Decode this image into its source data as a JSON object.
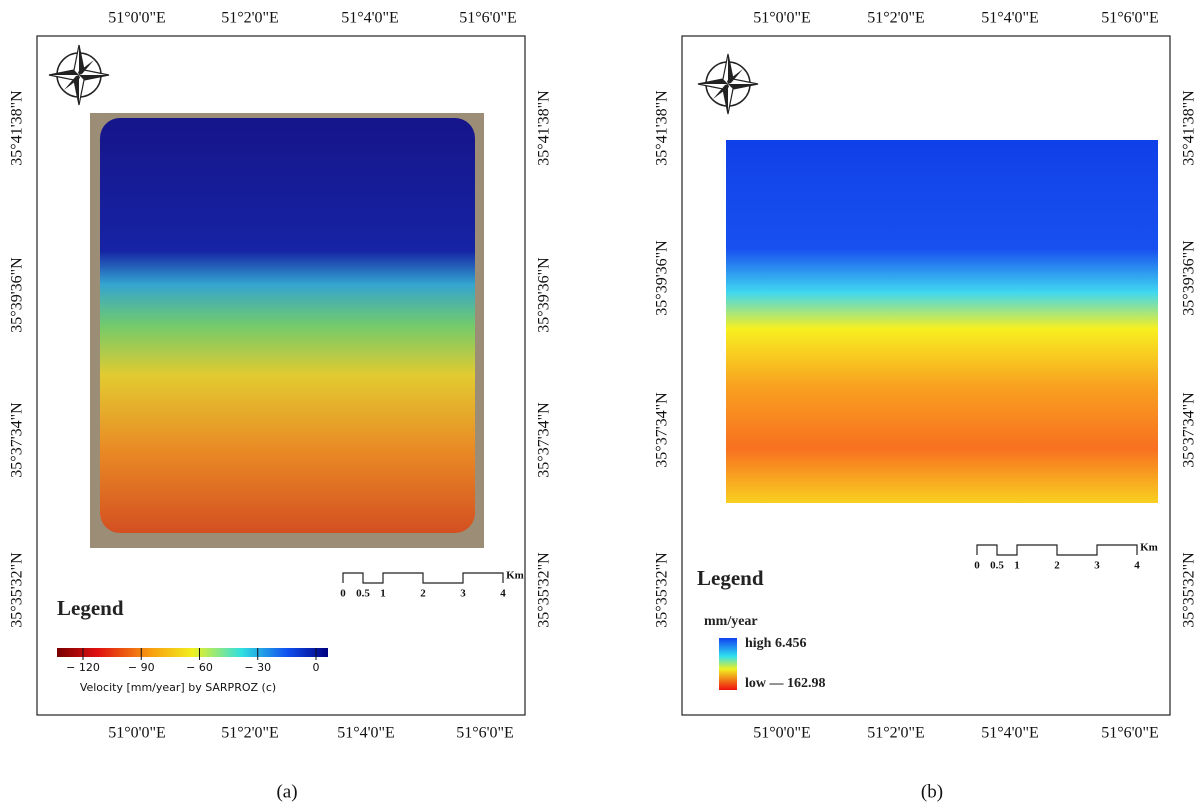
{
  "panel_a": {
    "top_lon": [
      "51°0'0\"E",
      "51°2'0\"E",
      "51°4'0\"E",
      "51°6'0\"E"
    ],
    "bottom_lon": [
      "51°0'0\"E",
      "51°2'0\"E",
      "51°4'0\"E",
      "51°6'0\"E"
    ],
    "left_lat": [
      "35°41'38\"N",
      "35°39'36\"N",
      "35°37'34\"N",
      "35°35'32\"N"
    ],
    "right_lat": [
      "35°41'38\"N",
      "35°39'36\"N",
      "35°37'34\"N",
      "35°35'32\"N"
    ],
    "scale_bar": {
      "ticks": [
        0,
        0.5,
        1,
        2,
        3,
        4
      ],
      "unit": "Km"
    },
    "legend": {
      "title": "Legend",
      "colorbar_ticks": [
        {
          "value": -120,
          "label": "− 120"
        },
        {
          "value": -90,
          "label": "− 90"
        },
        {
          "value": -60,
          "label": "− 60"
        },
        {
          "value": -30,
          "label": "− 30"
        },
        0
      ],
      "caption": "Velocity [mm/year] by SARPROZ (c)"
    },
    "label": "(a)"
  },
  "panel_b": {
    "top_lon": [
      "51°0'0\"E",
      "51°2'0\"E",
      "51°4'0\"E",
      "51°6'0\"E"
    ],
    "bottom_lon": [
      "51°0'0\"E",
      "51°2'0\"E",
      "51°4'0\"E",
      "51°6'0\"E"
    ],
    "left_lat": [
      "35°41'38\"N",
      "35°39'36\"N",
      "35°37'34\"N",
      "35°35'32\"N"
    ],
    "right_lat": [
      "35°41'38\"N",
      "35°39'36\"N",
      "35°37'34\"N",
      "35°35'32\"N"
    ],
    "scale_bar": {
      "ticks": [
        0,
        0.5,
        1,
        2,
        3,
        4
      ],
      "unit": "Km"
    },
    "legend": {
      "title": "Legend",
      "unit": "mm/year",
      "high": "high 6.456",
      "low": "low — 162.98"
    },
    "label": "(b)"
  }
}
